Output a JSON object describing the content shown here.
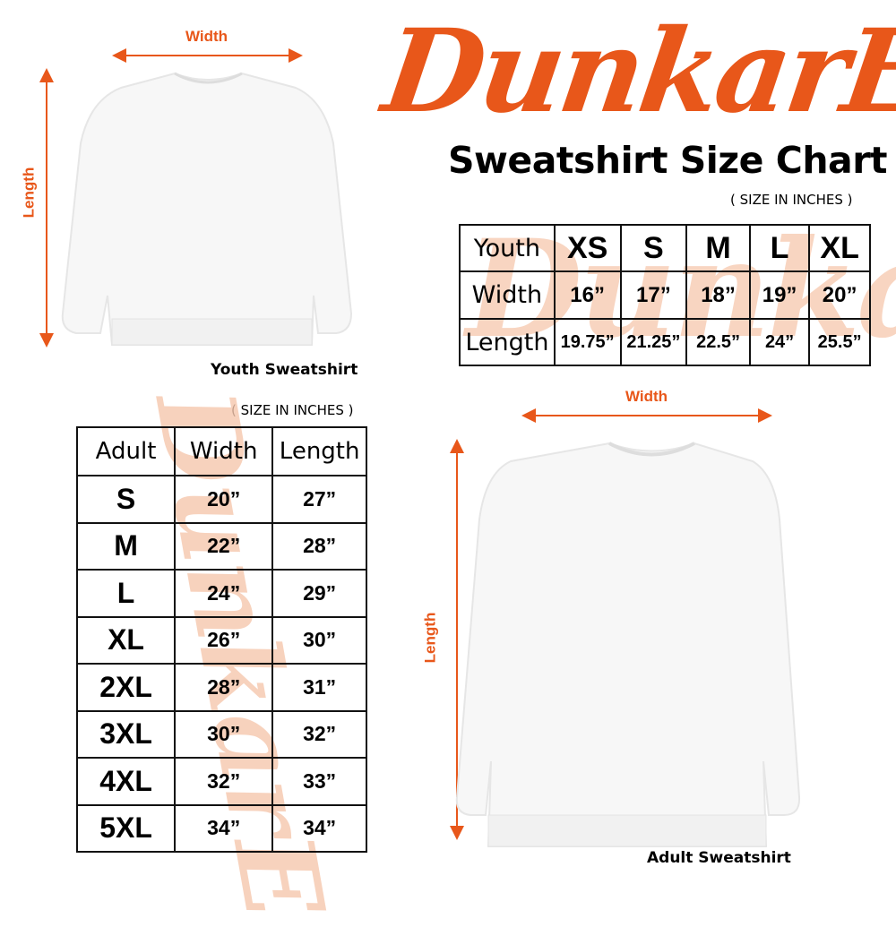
{
  "brand": {
    "logo_text": "DunkarE",
    "accent_color": "#e8571a"
  },
  "title": "Sweatshirt Size Chart",
  "youth": {
    "units_note": "( SIZE IN INCHES )",
    "caption": "Youth Sweatshirt",
    "width_label": "Width",
    "length_label": "Length",
    "table": {
      "header": [
        "Youth",
        "XS",
        "S",
        "M",
        "L",
        "XL"
      ],
      "rows": [
        [
          "Width",
          "16”",
          "17”",
          "18”",
          "19”",
          "20”"
        ],
        [
          "Length",
          "19.75”",
          "21.25”",
          "22.5”",
          "24”",
          "25.5”"
        ]
      ]
    }
  },
  "adult": {
    "units_note": "( SIZE IN INCHES )",
    "caption": "Adult Sweatshirt",
    "width_label": "Width",
    "length_label": "Length",
    "table": {
      "header": [
        "Adult",
        "Width",
        "Length"
      ],
      "rows": [
        [
          "S",
          "20”",
          "27”"
        ],
        [
          "M",
          "22”",
          "28”"
        ],
        [
          "L",
          "24”",
          "29”"
        ],
        [
          "XL",
          "26”",
          "30”"
        ],
        [
          "2XL",
          "28”",
          "31”"
        ],
        [
          "3XL",
          "30”",
          "32”"
        ],
        [
          "4XL",
          "32”",
          "33”"
        ],
        [
          "5XL",
          "34”",
          "34”"
        ]
      ]
    }
  }
}
